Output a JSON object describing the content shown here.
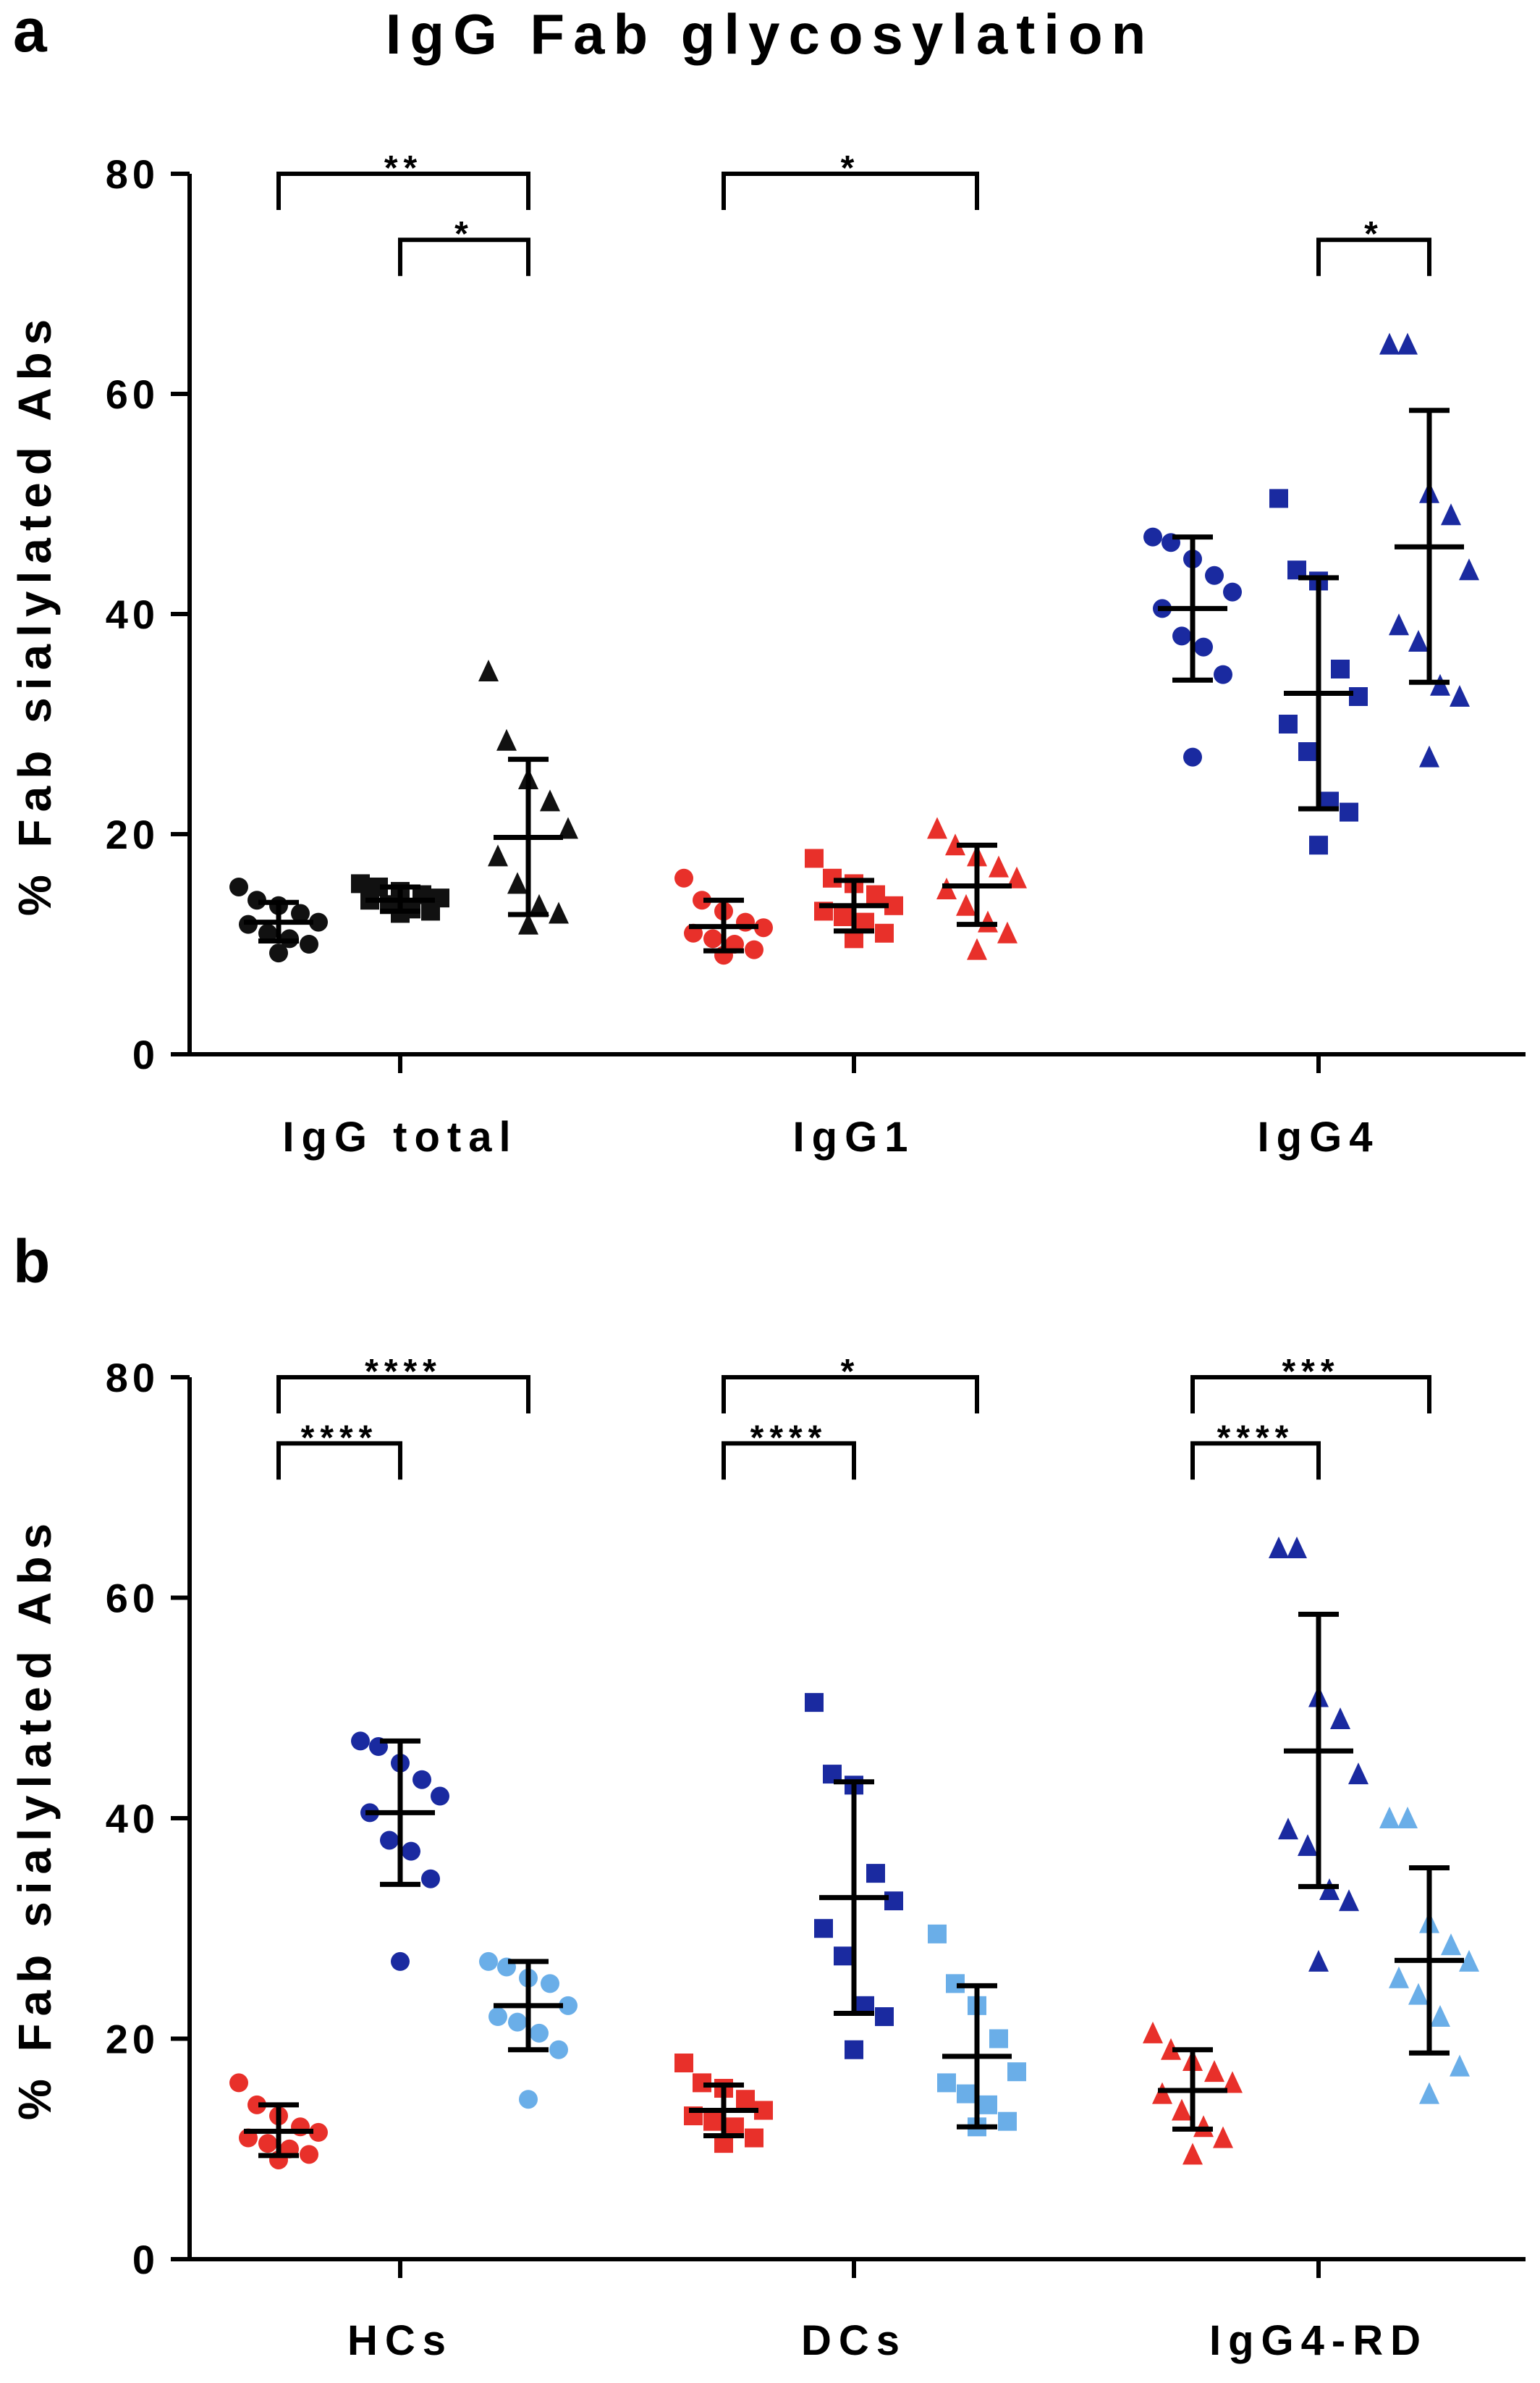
{
  "figure": {
    "title": "IgG Fab glycosylation",
    "panel_a_letter": "a",
    "panel_b_letter": "b"
  },
  "colors": {
    "black": "#111111",
    "red": "#e8302a",
    "dark_blue": "#1a2aa0",
    "light_blue": "#6aaee8",
    "axis": "#000000"
  },
  "chart_data": [
    {
      "type": "scatter",
      "panel": "a",
      "ylabel": "% Fab sialylated Abs",
      "ylim": [
        0,
        80
      ],
      "yticks": [
        0,
        20,
        40,
        60,
        80
      ],
      "groups": [
        "IgG total",
        "IgG1",
        "IgG4"
      ],
      "series": [
        {
          "group": "IgG total",
          "color": "black",
          "marker": "circle",
          "values": [
            15.2,
            14.0,
            13.5,
            12.8,
            12.0,
            11.8,
            11.0,
            10.5,
            10.0,
            9.2
          ],
          "mean": 12.0,
          "sd_low": 10.3,
          "sd_high": 13.8
        },
        {
          "group": "IgG total",
          "color": "black",
          "marker": "square",
          "values": [
            15.5,
            15.2,
            14.8,
            14.5,
            14.2,
            14.0,
            13.6,
            13.2,
            13.0,
            12.8
          ],
          "mean": 14.0,
          "sd_low": 13.0,
          "sd_high": 15.2
        },
        {
          "group": "IgG total",
          "color": "black",
          "marker": "triangle",
          "values": [
            34.8,
            28.5,
            25.0,
            23.0,
            20.5,
            18.0,
            15.5,
            13.5,
            12.8,
            11.8
          ],
          "mean": 19.7,
          "sd_low": 12.7,
          "sd_high": 26.8
        },
        {
          "group": "IgG1",
          "color": "red",
          "marker": "circle",
          "values": [
            16.0,
            14.0,
            13.0,
            12.0,
            11.5,
            11.0,
            10.5,
            10.0,
            9.5,
            9.0
          ],
          "mean": 11.6,
          "sd_low": 9.4,
          "sd_high": 14.0
        },
        {
          "group": "IgG1",
          "color": "red",
          "marker": "square",
          "values": [
            17.8,
            16.0,
            15.5,
            14.5,
            13.5,
            13.0,
            12.5,
            12.0,
            11.0,
            10.5
          ],
          "mean": 13.5,
          "sd_low": 11.2,
          "sd_high": 15.8
        },
        {
          "group": "IgG1",
          "color": "red",
          "marker": "triangle",
          "values": [
            20.5,
            19.0,
            18.0,
            17.0,
            16.0,
            15.0,
            13.5,
            12.0,
            11.0,
            9.5
          ],
          "mean": 15.3,
          "sd_low": 11.8,
          "sd_high": 19.0
        },
        {
          "group": "IgG4",
          "color": "dark_blue",
          "marker": "circle",
          "values": [
            47.0,
            46.5,
            45.0,
            43.5,
            42.0,
            40.5,
            38.0,
            37.0,
            34.5,
            27.0
          ],
          "mean": 40.5,
          "sd_low": 34.0,
          "sd_high": 47.0
        },
        {
          "group": "IgG4",
          "color": "dark_blue",
          "marker": "square",
          "values": [
            50.5,
            44.0,
            43.0,
            35.0,
            32.5,
            30.0,
            27.5,
            23.0,
            22.0,
            19.0
          ],
          "mean": 32.8,
          "sd_low": 22.3,
          "sd_high": 43.3
        },
        {
          "group": "IgG4",
          "color": "dark_blue",
          "marker": "triangle",
          "values": [
            64.5,
            64.5,
            51.0,
            49.0,
            44.0,
            39.0,
            37.5,
            33.5,
            32.5,
            27.0
          ],
          "mean": 46.1,
          "sd_low": 33.8,
          "sd_high": 58.5
        }
      ],
      "significance": [
        {
          "label": "**",
          "from_series": 0,
          "to_series": 2,
          "y": 80
        },
        {
          "label": "*",
          "from_series": 1,
          "to_series": 2,
          "y": 74
        },
        {
          "label": "*",
          "from_series": 3,
          "to_series": 5,
          "y": 80
        },
        {
          "label": "*",
          "from_series": 7,
          "to_series": 8,
          "y": 74
        }
      ]
    },
    {
      "type": "scatter",
      "panel": "b",
      "ylabel": "% Fab sialylated Abs",
      "ylim": [
        0,
        80
      ],
      "yticks": [
        0,
        20,
        40,
        60,
        80
      ],
      "groups": [
        "HCs",
        "DCs",
        "IgG4-RD"
      ],
      "series": [
        {
          "group": "HCs",
          "color": "red",
          "marker": "circle",
          "values": [
            16.0,
            14.0,
            13.0,
            12.0,
            11.5,
            11.0,
            10.5,
            10.0,
            9.5,
            9.0
          ],
          "mean": 11.6,
          "sd_low": 9.4,
          "sd_high": 14.0
        },
        {
          "group": "HCs",
          "color": "dark_blue",
          "marker": "circle",
          "values": [
            47.0,
            46.5,
            45.0,
            43.5,
            42.0,
            40.5,
            38.0,
            37.0,
            34.5,
            27.0
          ],
          "mean": 40.5,
          "sd_low": 34.0,
          "sd_high": 47.0
        },
        {
          "group": "HCs",
          "color": "light_blue",
          "marker": "circle",
          "values": [
            27.0,
            26.5,
            25.5,
            25.0,
            23.0,
            22.0,
            21.5,
            20.5,
            19.0,
            14.5
          ],
          "mean": 23.0,
          "sd_low": 19.0,
          "sd_high": 27.0
        },
        {
          "group": "DCs",
          "color": "red",
          "marker": "square",
          "values": [
            17.8,
            16.0,
            15.5,
            14.5,
            13.5,
            13.0,
            12.5,
            12.0,
            11.0,
            10.5
          ],
          "mean": 13.5,
          "sd_low": 11.2,
          "sd_high": 15.8
        },
        {
          "group": "DCs",
          "color": "dark_blue",
          "marker": "square",
          "values": [
            50.5,
            44.0,
            43.0,
            35.0,
            32.5,
            30.0,
            27.5,
            23.0,
            22.0,
            19.0
          ],
          "mean": 32.8,
          "sd_low": 22.3,
          "sd_high": 43.3
        },
        {
          "group": "DCs",
          "color": "light_blue",
          "marker": "square",
          "values": [
            29.5,
            25.0,
            23.0,
            20.0,
            17.0,
            16.0,
            15.0,
            14.0,
            12.5,
            12.0
          ],
          "mean": 18.4,
          "sd_low": 12.0,
          "sd_high": 24.8
        },
        {
          "group": "IgG4-RD",
          "color": "red",
          "marker": "triangle",
          "values": [
            20.5,
            19.0,
            18.0,
            17.0,
            16.0,
            15.0,
            13.5,
            12.0,
            11.0,
            9.5
          ],
          "mean": 15.3,
          "sd_low": 11.8,
          "sd_high": 19.0
        },
        {
          "group": "IgG4-RD",
          "color": "dark_blue",
          "marker": "triangle",
          "values": [
            64.5,
            64.5,
            51.0,
            49.0,
            44.0,
            39.0,
            37.5,
            33.5,
            32.5,
            27.0
          ],
          "mean": 46.1,
          "sd_low": 33.8,
          "sd_high": 58.5
        },
        {
          "group": "IgG4-RD",
          "color": "light_blue",
          "marker": "triangle",
          "values": [
            40.0,
            40.0,
            30.5,
            28.5,
            27.0,
            25.5,
            24.0,
            22.0,
            17.5,
            15.0
          ],
          "mean": 27.1,
          "sd_low": 18.7,
          "sd_high": 35.5
        }
      ],
      "significance": [
        {
          "label": "****",
          "from_series": 0,
          "to_series": 2,
          "y": 80
        },
        {
          "label": "****",
          "from_series": 0,
          "to_series": 1,
          "y": 74
        },
        {
          "label": "*",
          "from_series": 3,
          "to_series": 5,
          "y": 80
        },
        {
          "label": "****",
          "from_series": 3,
          "to_series": 4,
          "y": 74
        },
        {
          "label": "***",
          "from_series": 6,
          "to_series": 8,
          "y": 80
        },
        {
          "label": "****",
          "from_series": 6,
          "to_series": 7,
          "y": 74
        }
      ]
    }
  ]
}
